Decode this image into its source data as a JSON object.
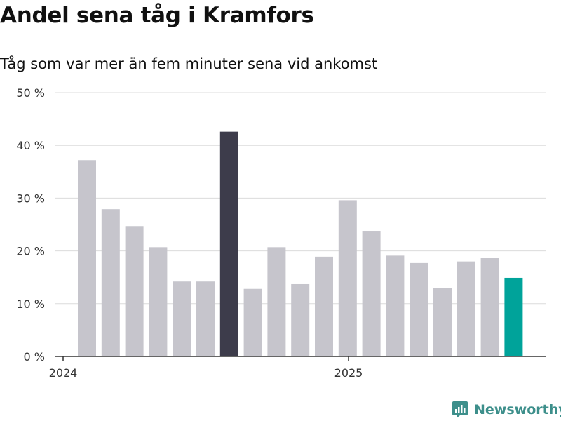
{
  "header": {
    "title": "Andel sena tåg i Kramfors",
    "subtitle": "Tåg som var mer än fem minuter sena vid ankomst"
  },
  "brand": {
    "name": "Newsworthy",
    "icon": "newsworthy-logo-icon",
    "color": "#3d8f8b"
  },
  "colors": {
    "bar_default": "#c6c5cc",
    "bar_highlight": "#3d3c4b",
    "bar_latest": "#00a39a",
    "grid": "#dcdcdc",
    "axis": "#333333",
    "tick_text": "#333333"
  },
  "chart_data": {
    "type": "bar",
    "title": "Andel sena tåg i Kramfors",
    "subtitle": "Tåg som var mer än fem minuter sena vid ankomst",
    "ylim": [
      0,
      50
    ],
    "yticks": [
      0,
      10,
      20,
      30,
      40,
      50
    ],
    "ytick_labels": [
      "0 %",
      "10 %",
      "20 %",
      "30 %",
      "40 %",
      "50 %"
    ],
    "xtick_labels": [
      "2024",
      "2025"
    ],
    "grid": true,
    "legend": "none",
    "series": [
      {
        "values": [
          37.2,
          27.9,
          24.7,
          20.7,
          14.2,
          14.2,
          42.6,
          12.8,
          20.7,
          13.7,
          18.9,
          29.6,
          23.8,
          19.1,
          17.7,
          12.9,
          18.0,
          18.7,
          14.9
        ],
        "highlight_index": 6,
        "latest_index": 18
      }
    ]
  }
}
